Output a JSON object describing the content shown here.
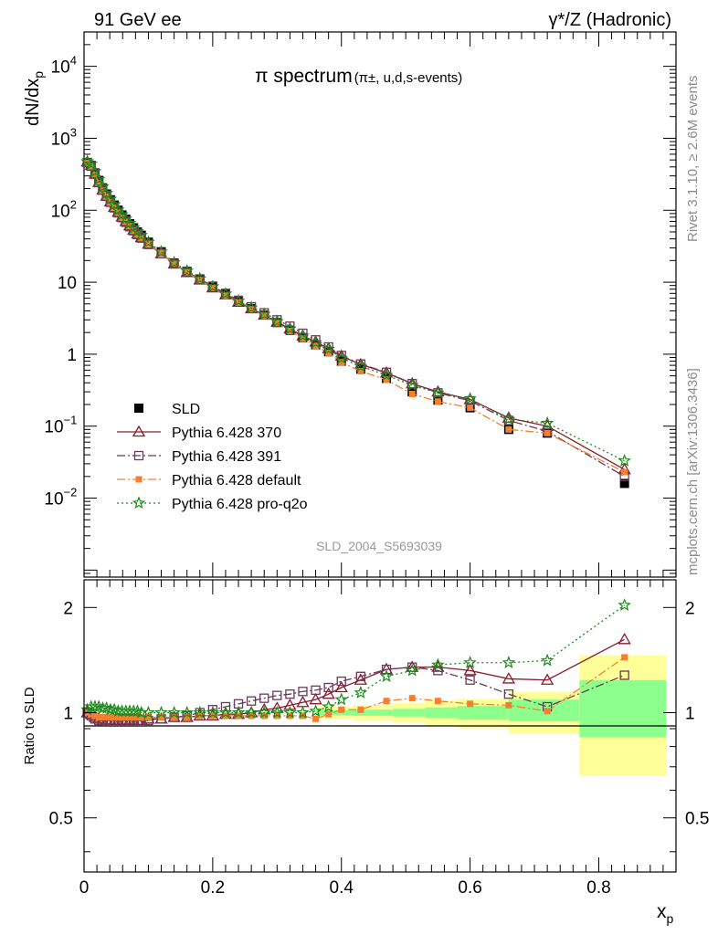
{
  "header": {
    "left": "91 GeV ee",
    "right": "γ*/Z (Hadronic)"
  },
  "side_text": {
    "rivet": "Rivet 3.1.10, ≥ 2.6M events",
    "mcplots": "mcplots.cern.ch [arXiv:1306.3436]"
  },
  "watermark": "SLD_2004_S5693039",
  "colors": {
    "data": "#000000",
    "p370": "#8b1a2b",
    "p391": "#6b3a5a",
    "pdefault": "#f28030",
    "pq2o": "#1a8a1a",
    "band_inner": "#8cff8c",
    "band_outer": "#ffff99"
  },
  "chart_data": [
    {
      "type": "scatter",
      "title": "π spectrum",
      "title_sub": "(π±, u,d,s-events)",
      "xlabel": "x",
      "xlabel_sub": "p",
      "ylabel": "dN/dx",
      "ylabel_sub": "p",
      "yscale": "log",
      "xlim": [
        0,
        0.92
      ],
      "ylim": [
        0.0008,
        30000
      ],
      "yticks": [
        {
          "value": 0.01,
          "base": "10",
          "exp": "−2"
        },
        {
          "value": 0.1,
          "base": "10",
          "exp": "−1"
        },
        {
          "value": 1,
          "base": "1",
          "exp": ""
        },
        {
          "value": 10,
          "base": "10",
          "exp": ""
        },
        {
          "value": 100,
          "base": "10",
          "exp": "2"
        },
        {
          "value": 1000,
          "base": "10",
          "exp": "3"
        },
        {
          "value": 10000,
          "base": "10",
          "exp": "4"
        }
      ],
      "x": [
        0.005,
        0.011,
        0.017,
        0.023,
        0.029,
        0.035,
        0.041,
        0.047,
        0.053,
        0.059,
        0.065,
        0.071,
        0.077,
        0.083,
        0.089,
        0.1,
        0.12,
        0.14,
        0.16,
        0.18,
        0.2,
        0.22,
        0.24,
        0.26,
        0.28,
        0.3,
        0.32,
        0.34,
        0.36,
        0.38,
        0.4,
        0.43,
        0.47,
        0.51,
        0.55,
        0.6,
        0.66,
        0.72,
        0.84
      ],
      "series": [
        {
          "name": "SLD",
          "key": "data",
          "marker": "square-filled",
          "line": "none",
          "values": [
            460,
            420,
            330,
            260,
            205,
            168,
            140,
            118,
            100,
            86,
            75,
            65,
            57,
            50,
            45,
            36,
            26.5,
            18.5,
            14.2,
            11,
            8.6,
            6.8,
            5.4,
            4.3,
            3.5,
            2.75,
            2.15,
            1.7,
            1.35,
            1.08,
            0.8,
            0.62,
            0.46,
            0.3,
            0.23,
            0.18,
            0.09,
            0.08,
            0.016
          ]
        },
        {
          "name": "Pythia 6.428 370",
          "key": "p370",
          "marker": "triangle-open",
          "line": "solid",
          "values": [
            470,
            420,
            320,
            245,
            192,
            158,
            131,
            110,
            94,
            81,
            70,
            61,
            53,
            47,
            42,
            34,
            25,
            18,
            13.7,
            10.8,
            8.4,
            6.7,
            5.3,
            4.3,
            3.5,
            2.8,
            2.25,
            1.8,
            1.48,
            1.2,
            0.94,
            0.72,
            0.55,
            0.39,
            0.3,
            0.235,
            0.13,
            0.1,
            0.025
          ]
        },
        {
          "name": "Pythia 6.428 391",
          "key": "p391",
          "marker": "square-open",
          "line": "dashdot",
          "values": [
            460,
            410,
            315,
            242,
            190,
            156,
            129,
            108,
            92,
            79,
            68,
            59,
            52,
            46,
            41,
            33.5,
            25,
            18,
            14,
            11.1,
            8.8,
            7,
            5.6,
            4.55,
            3.75,
            3,
            2.45,
            1.95,
            1.58,
            1.26,
            0.96,
            0.73,
            0.56,
            0.39,
            0.29,
            0.225,
            0.12,
            0.085,
            0.02
          ]
        },
        {
          "name": "Pythia 6.428 default",
          "key": "pdefault",
          "marker": "square-filled-small",
          "line": "dashdot",
          "values": [
            455,
            405,
            312,
            240,
            188,
            155,
            128,
            108,
            92,
            79,
            69,
            60,
            52,
            46,
            41,
            34,
            25.5,
            18,
            13.8,
            10.7,
            8.3,
            6.5,
            5.2,
            4.2,
            3.4,
            2.7,
            2.1,
            1.65,
            1.3,
            1.04,
            0.77,
            0.58,
            0.44,
            0.28,
            0.22,
            0.18,
            0.09,
            0.08,
            0.023
          ]
        },
        {
          "name": "Pythia 6.428 pro-q2o",
          "key": "pq2o",
          "marker": "star-open",
          "line": "dotted",
          "values": [
            475,
            440,
            345,
            270,
            212,
            172,
            143,
            120,
            101,
            87,
            76,
            66,
            57,
            51,
            45,
            36,
            26.5,
            18.7,
            14.4,
            11.2,
            8.7,
            6.9,
            5.5,
            4.4,
            3.6,
            2.85,
            2.25,
            1.8,
            1.45,
            1.18,
            0.88,
            0.68,
            0.51,
            0.37,
            0.29,
            0.24,
            0.125,
            0.11,
            0.033
          ]
        }
      ],
      "legend": {
        "placement": "lower-left"
      }
    },
    {
      "type": "scatter",
      "ylabel": "Ratio to SLD",
      "xlabel": "x",
      "xlabel_sub": "p",
      "yscale": "log",
      "xlim": [
        0,
        0.92
      ],
      "ylim": [
        0.35,
        2.4
      ],
      "yticks": [
        {
          "value": 0.5,
          "label": "0.5"
        },
        {
          "value": 1,
          "label": "1"
        },
        {
          "value": 2,
          "label": "2"
        }
      ],
      "xticks": [
        {
          "value": 0,
          "label": "0"
        },
        {
          "value": 0.2,
          "label": "0.2"
        },
        {
          "value": 0.4,
          "label": "0.4"
        },
        {
          "value": 0.6,
          "label": "0.6"
        },
        {
          "value": 0.8,
          "label": "0.8"
        }
      ],
      "bands": [
        {
          "x0": 0.36,
          "x1": 0.42,
          "inner": [
            0.985,
            1.015
          ],
          "outer": [
            0.96,
            1.04
          ]
        },
        {
          "x0": 0.42,
          "x1": 0.48,
          "inner": [
            0.98,
            1.02
          ],
          "outer": [
            0.95,
            1.05
          ]
        },
        {
          "x0": 0.48,
          "x1": 0.53,
          "inner": [
            0.975,
            1.025
          ],
          "outer": [
            0.935,
            1.065
          ]
        },
        {
          "x0": 0.53,
          "x1": 0.58,
          "inner": [
            0.965,
            1.035
          ],
          "outer": [
            0.915,
            1.085
          ]
        },
        {
          "x0": 0.58,
          "x1": 0.66,
          "inner": [
            0.955,
            1.045
          ],
          "outer": [
            0.905,
            1.095
          ]
        },
        {
          "x0": 0.66,
          "x1": 0.77,
          "inner": [
            0.945,
            1.09
          ],
          "outer": [
            0.87,
            1.15
          ]
        },
        {
          "x0": 0.77,
          "x1": 0.905,
          "inner": [
            0.85,
            1.24
          ],
          "outer": [
            0.66,
            1.46
          ]
        }
      ],
      "x": [
        0.005,
        0.011,
        0.017,
        0.023,
        0.029,
        0.035,
        0.041,
        0.047,
        0.053,
        0.059,
        0.065,
        0.071,
        0.077,
        0.083,
        0.089,
        0.1,
        0.12,
        0.14,
        0.16,
        0.18,
        0.2,
        0.22,
        0.24,
        0.26,
        0.28,
        0.3,
        0.32,
        0.34,
        0.36,
        0.38,
        0.4,
        0.43,
        0.47,
        0.51,
        0.55,
        0.6,
        0.66,
        0.72,
        0.84
      ],
      "series": [
        {
          "name": "Pythia 6.428 370",
          "key": "p370",
          "marker": "triangle-open",
          "line": "solid",
          "values": [
            1.0,
            0.99,
            0.97,
            0.96,
            0.95,
            0.95,
            0.95,
            0.95,
            0.95,
            0.95,
            0.95,
            0.95,
            0.95,
            0.95,
            0.95,
            0.96,
            0.96,
            0.97,
            0.97,
            0.98,
            0.98,
            0.99,
            0.99,
            1.0,
            1.02,
            1.03,
            1.05,
            1.07,
            1.09,
            1.13,
            1.18,
            1.24,
            1.33,
            1.35,
            1.35,
            1.32,
            1.25,
            1.24,
            1.62
          ]
        },
        {
          "name": "Pythia 6.428 391",
          "key": "p391",
          "marker": "square-open",
          "line": "dashdot",
          "values": [
            1.0,
            0.98,
            0.96,
            0.95,
            0.95,
            0.94,
            0.94,
            0.94,
            0.94,
            0.94,
            0.94,
            0.94,
            0.94,
            0.94,
            0.94,
            0.95,
            0.96,
            0.97,
            0.98,
            1.0,
            1.02,
            1.04,
            1.06,
            1.08,
            1.1,
            1.12,
            1.13,
            1.15,
            1.16,
            1.18,
            1.23,
            1.27,
            1.33,
            1.35,
            1.32,
            1.24,
            1.13,
            1.04,
            1.28
          ]
        },
        {
          "name": "Pythia 6.428 default",
          "key": "pdefault",
          "marker": "square-filled-small",
          "line": "dashdot",
          "values": [
            1.0,
            0.99,
            0.98,
            0.97,
            0.97,
            0.97,
            0.97,
            0.97,
            0.97,
            0.97,
            0.97,
            0.97,
            0.97,
            0.97,
            0.97,
            0.97,
            0.97,
            0.97,
            0.97,
            0.98,
            0.98,
            0.98,
            0.98,
            0.98,
            0.98,
            0.98,
            0.98,
            0.98,
            0.96,
            0.99,
            1.02,
            1.02,
            1.08,
            1.1,
            1.08,
            1.06,
            1.05,
            1.01,
            1.44
          ]
        },
        {
          "name": "Pythia 6.428 pro-q2o",
          "key": "pq2o",
          "marker": "star-open",
          "line": "dotted",
          "values": [
            1.02,
            1.04,
            1.04,
            1.04,
            1.03,
            1.03,
            1.02,
            1.02,
            1.01,
            1.01,
            1.01,
            1.01,
            1.01,
            1.01,
            1.0,
            1.0,
            1.0,
            1.0,
            1.0,
            1.0,
            1.0,
            1.0,
            1.0,
            1.0,
            1.0,
            1.0,
            1.0,
            1.0,
            1.01,
            1.04,
            1.09,
            1.14,
            1.27,
            1.32,
            1.37,
            1.39,
            1.39,
            1.41,
            2.03
          ]
        }
      ]
    }
  ]
}
